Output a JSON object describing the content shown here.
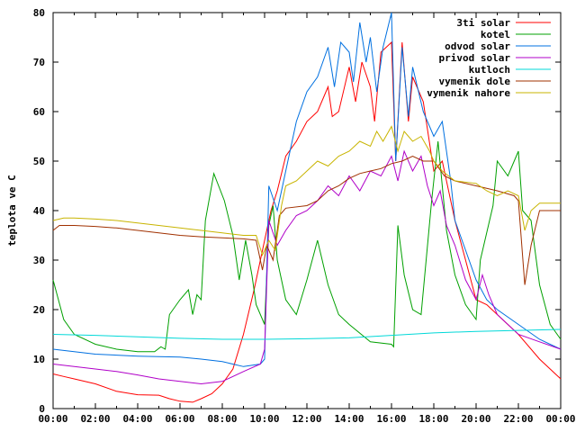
{
  "chart_data": {
    "type": "line",
    "ylabel": "teplota ve C",
    "xlabel": "",
    "ylim": [
      0,
      80
    ],
    "yticks": [
      0,
      10,
      20,
      30,
      40,
      50,
      60,
      70,
      80
    ],
    "xticks": [
      "00:00",
      "02:00",
      "04:00",
      "06:00",
      "08:00",
      "10:00",
      "12:00",
      "14:00",
      "16:00",
      "18:00",
      "20:00",
      "22:00",
      "00:00"
    ],
    "xrange_hours": [
      0,
      24
    ],
    "grid": false,
    "legend_position": "top-right",
    "series": [
      {
        "name": "3ti solar",
        "color": "#ff0000",
        "points": [
          [
            0,
            7
          ],
          [
            0.5,
            6.5
          ],
          [
            1,
            6
          ],
          [
            2,
            5
          ],
          [
            3,
            3.5
          ],
          [
            4,
            2.8
          ],
          [
            5,
            2.7
          ],
          [
            5.5,
            2
          ],
          [
            6,
            1.5
          ],
          [
            6.6,
            1.3
          ],
          [
            7,
            2
          ],
          [
            7.5,
            3
          ],
          [
            8,
            5
          ],
          [
            8.5,
            8
          ],
          [
            9,
            15
          ],
          [
            9.5,
            24
          ],
          [
            9.8,
            30
          ],
          [
            10,
            34
          ],
          [
            10.3,
            40
          ],
          [
            10.6,
            44
          ],
          [
            11,
            51
          ],
          [
            11.5,
            54
          ],
          [
            12,
            58
          ],
          [
            12.5,
            60
          ],
          [
            13,
            65
          ],
          [
            13.2,
            59
          ],
          [
            13.5,
            60
          ],
          [
            14,
            69
          ],
          [
            14.3,
            62
          ],
          [
            14.6,
            70
          ],
          [
            15,
            65
          ],
          [
            15.2,
            58
          ],
          [
            15.5,
            72
          ],
          [
            16,
            74
          ],
          [
            16.2,
            50
          ],
          [
            16.5,
            74
          ],
          [
            16.8,
            58
          ],
          [
            17,
            67
          ],
          [
            17.5,
            62
          ],
          [
            18,
            48
          ],
          [
            18.4,
            50
          ],
          [
            19,
            38
          ],
          [
            19.5,
            30
          ],
          [
            20,
            22
          ],
          [
            20.5,
            21
          ],
          [
            21,
            19
          ],
          [
            22,
            15
          ],
          [
            23,
            10
          ],
          [
            24,
            6
          ]
        ]
      },
      {
        "name": "kotel",
        "color": "#00a000",
        "points": [
          [
            0,
            26
          ],
          [
            0.5,
            18
          ],
          [
            1,
            15
          ],
          [
            2,
            13
          ],
          [
            3,
            12
          ],
          [
            4,
            11.5
          ],
          [
            4.8,
            11.5
          ],
          [
            5.1,
            12.5
          ],
          [
            5.3,
            12
          ],
          [
            5.5,
            19
          ],
          [
            6,
            22
          ],
          [
            6.4,
            24
          ],
          [
            6.6,
            19
          ],
          [
            6.8,
            23
          ],
          [
            7,
            22
          ],
          [
            7.2,
            38
          ],
          [
            7.6,
            47.5
          ],
          [
            8.1,
            42
          ],
          [
            8.5,
            35
          ],
          [
            8.8,
            26
          ],
          [
            9.1,
            34
          ],
          [
            9.4,
            27
          ],
          [
            9.6,
            21
          ],
          [
            10,
            17
          ],
          [
            10.2,
            37
          ],
          [
            10.4,
            41
          ],
          [
            10.6,
            30
          ],
          [
            11,
            22
          ],
          [
            11.5,
            19
          ],
          [
            12,
            26
          ],
          [
            12.5,
            34
          ],
          [
            13,
            25
          ],
          [
            13.5,
            19
          ],
          [
            14,
            17
          ],
          [
            15,
            13.5
          ],
          [
            16,
            13
          ],
          [
            16.1,
            12.5
          ],
          [
            16.3,
            37
          ],
          [
            16.6,
            27
          ],
          [
            17,
            20
          ],
          [
            17.4,
            19
          ],
          [
            17.9,
            42
          ],
          [
            18.2,
            54
          ],
          [
            18.6,
            36
          ],
          [
            19,
            27
          ],
          [
            19.5,
            21
          ],
          [
            20,
            18
          ],
          [
            20.2,
            30
          ],
          [
            20.8,
            41
          ],
          [
            21,
            50
          ],
          [
            21.5,
            47
          ],
          [
            22,
            52
          ],
          [
            22.2,
            40
          ],
          [
            22.6,
            38
          ],
          [
            23,
            25
          ],
          [
            23.5,
            17
          ],
          [
            24,
            14
          ]
        ]
      },
      {
        "name": "odvod solar",
        "color": "#0070e0",
        "points": [
          [
            0,
            12
          ],
          [
            1,
            11.5
          ],
          [
            2,
            11
          ],
          [
            3,
            10.8
          ],
          [
            4,
            10.6
          ],
          [
            5,
            10.5
          ],
          [
            6,
            10.4
          ],
          [
            7,
            10
          ],
          [
            8,
            9.5
          ],
          [
            9,
            8.5
          ],
          [
            9.8,
            9
          ],
          [
            10,
            10
          ],
          [
            10.2,
            45
          ],
          [
            10.6,
            40
          ],
          [
            11,
            48
          ],
          [
            11.5,
            58
          ],
          [
            12,
            64
          ],
          [
            12.5,
            67
          ],
          [
            13,
            73
          ],
          [
            13.3,
            65
          ],
          [
            13.6,
            74
          ],
          [
            14,
            72
          ],
          [
            14.2,
            66
          ],
          [
            14.5,
            78
          ],
          [
            14.8,
            70
          ],
          [
            15,
            75
          ],
          [
            15.3,
            64
          ],
          [
            15.6,
            73
          ],
          [
            16,
            80
          ],
          [
            16.2,
            50
          ],
          [
            16.5,
            73
          ],
          [
            16.8,
            59
          ],
          [
            17,
            69
          ],
          [
            17.5,
            60
          ],
          [
            18,
            55
          ],
          [
            18.4,
            58
          ],
          [
            18.8,
            46
          ],
          [
            19,
            38
          ],
          [
            19.5,
            32
          ],
          [
            20,
            26
          ],
          [
            20.5,
            22
          ],
          [
            21,
            20
          ],
          [
            22,
            17
          ],
          [
            23,
            14
          ],
          [
            24,
            12
          ]
        ]
      },
      {
        "name": "privod solar",
        "color": "#b000c8",
        "points": [
          [
            0,
            9
          ],
          [
            1,
            8.5
          ],
          [
            2,
            8
          ],
          [
            3,
            7.5
          ],
          [
            4,
            6.8
          ],
          [
            5,
            6
          ],
          [
            6,
            5.5
          ],
          [
            7,
            5
          ],
          [
            8,
            5.5
          ],
          [
            9,
            7.5
          ],
          [
            9.8,
            9
          ],
          [
            10,
            12
          ],
          [
            10.2,
            38
          ],
          [
            10.6,
            33
          ],
          [
            11,
            36
          ],
          [
            11.5,
            39
          ],
          [
            12,
            40
          ],
          [
            12.5,
            42
          ],
          [
            13,
            45
          ],
          [
            13.5,
            43
          ],
          [
            14,
            47
          ],
          [
            14.5,
            44
          ],
          [
            15,
            48
          ],
          [
            15.5,
            47
          ],
          [
            16,
            51
          ],
          [
            16.3,
            46
          ],
          [
            16.6,
            52
          ],
          [
            17,
            48
          ],
          [
            17.4,
            51
          ],
          [
            17.7,
            45
          ],
          [
            18,
            41
          ],
          [
            18.3,
            44
          ],
          [
            18.6,
            37
          ],
          [
            19,
            33
          ],
          [
            19.5,
            26
          ],
          [
            20,
            22
          ],
          [
            20.3,
            27
          ],
          [
            20.6,
            23
          ],
          [
            21,
            19
          ],
          [
            22,
            15
          ],
          [
            23,
            13.5
          ],
          [
            24,
            12
          ]
        ]
      },
      {
        "name": "kutloch",
        "color": "#00d8d8",
        "points": [
          [
            0,
            15
          ],
          [
            2,
            14.8
          ],
          [
            4,
            14.5
          ],
          [
            6,
            14.2
          ],
          [
            8,
            14
          ],
          [
            10,
            14
          ],
          [
            12,
            14.1
          ],
          [
            14,
            14.3
          ],
          [
            16,
            14.8
          ],
          [
            18,
            15.3
          ],
          [
            20,
            15.6
          ],
          [
            22,
            15.8
          ],
          [
            24,
            16
          ]
        ]
      },
      {
        "name": "vymenik dole",
        "color": "#a03000",
        "points": [
          [
            0,
            36
          ],
          [
            0.3,
            37
          ],
          [
            1,
            37
          ],
          [
            2,
            36.8
          ],
          [
            3,
            36.5
          ],
          [
            4,
            36
          ],
          [
            5,
            35.5
          ],
          [
            6,
            35
          ],
          [
            7,
            34.7
          ],
          [
            8,
            34.5
          ],
          [
            9,
            34.3
          ],
          [
            9.6,
            34
          ],
          [
            9.9,
            28
          ],
          [
            10.1,
            33
          ],
          [
            10.4,
            30
          ],
          [
            10.7,
            39
          ],
          [
            11,
            40.5
          ],
          [
            12,
            41
          ],
          [
            12.5,
            42
          ],
          [
            13,
            44
          ],
          [
            13.5,
            45
          ],
          [
            14,
            46.5
          ],
          [
            14.5,
            47.5
          ],
          [
            15,
            48
          ],
          [
            15.5,
            48.5
          ],
          [
            16,
            49.5
          ],
          [
            16.5,
            50
          ],
          [
            17,
            51
          ],
          [
            17.5,
            50
          ],
          [
            18,
            50
          ],
          [
            18.5,
            47
          ],
          [
            19,
            46
          ],
          [
            20,
            45
          ],
          [
            21,
            44
          ],
          [
            21.8,
            43
          ],
          [
            22,
            42
          ],
          [
            22.3,
            25
          ],
          [
            22.6,
            33
          ],
          [
            23,
            40
          ],
          [
            23.5,
            40
          ],
          [
            24,
            40
          ]
        ]
      },
      {
        "name": "vymenik nahore",
        "color": "#c8b400",
        "points": [
          [
            0,
            38
          ],
          [
            0.5,
            38.5
          ],
          [
            1,
            38.5
          ],
          [
            2,
            38.3
          ],
          [
            3,
            38
          ],
          [
            4,
            37.5
          ],
          [
            5,
            37
          ],
          [
            6,
            36.5
          ],
          [
            7,
            36
          ],
          [
            8,
            35.5
          ],
          [
            9,
            35
          ],
          [
            9.6,
            35
          ],
          [
            9.9,
            31
          ],
          [
            10.2,
            34
          ],
          [
            10.5,
            32
          ],
          [
            10.8,
            41
          ],
          [
            11,
            45
          ],
          [
            11.5,
            46
          ],
          [
            12,
            48
          ],
          [
            12.5,
            50
          ],
          [
            13,
            49
          ],
          [
            13.5,
            51
          ],
          [
            14,
            52
          ],
          [
            14.5,
            54
          ],
          [
            15,
            53
          ],
          [
            15.3,
            56
          ],
          [
            15.6,
            54
          ],
          [
            16,
            57
          ],
          [
            16.3,
            52
          ],
          [
            16.6,
            56
          ],
          [
            17,
            54
          ],
          [
            17.4,
            55
          ],
          [
            17.8,
            52
          ],
          [
            18,
            50
          ],
          [
            18.4,
            48
          ],
          [
            18.7,
            47
          ],
          [
            19,
            46
          ],
          [
            20,
            45.5
          ],
          [
            20.5,
            44
          ],
          [
            21,
            43
          ],
          [
            21.5,
            44
          ],
          [
            22,
            43
          ],
          [
            22.3,
            36
          ],
          [
            22.6,
            40
          ],
          [
            23,
            41.5
          ],
          [
            24,
            41.5
          ]
        ]
      }
    ]
  }
}
